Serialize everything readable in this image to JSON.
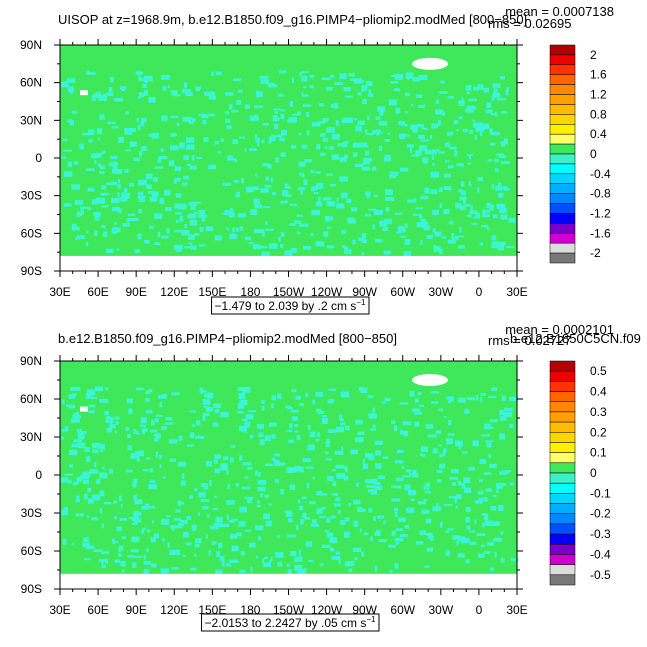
{
  "panels": [
    {
      "title": "UISOP at z=1968.9m, b.e12.B1850.f09_g16.PIMP4−pliomip2.modMed [800−850]",
      "mean": "mean = 0.0007138",
      "rms": "rms = 0.02695",
      "range": "−1.479 to 2.039 by .2 cm s",
      "range_exp": "−1",
      "x_labels": [
        "30E",
        "60E",
        "90E",
        "120E",
        "150E",
        "180",
        "150W",
        "120W",
        "90W",
        "60W",
        "30W",
        "0",
        "30E"
      ],
      "y_labels": [
        "90N",
        "60N",
        "30N",
        "0",
        "30S",
        "60S",
        "90S"
      ],
      "colorbar": {
        "labels": [
          2,
          1.6,
          1.2,
          0.8,
          0.4,
          0,
          -0.4,
          -0.8,
          -1.2,
          -1.6,
          -2
        ],
        "colors": [
          "#b40000",
          "#ee0000",
          "#ff3300",
          "#ff6600",
          "#ff8800",
          "#ffa000",
          "#ffbb00",
          "#ffd500",
          "#fff000",
          "#ffff66",
          "#3ee85a",
          "#3cf0c8",
          "#00ffff",
          "#00d8ff",
          "#00b0ff",
          "#0088ff",
          "#0050ff",
          "#0000ff",
          "#7800c8",
          "#d000d0",
          "#dcdcdc",
          "#787878"
        ]
      }
    },
    {
      "title": "b.e12.B1850.f09_g16.PIMP4−pliomip2.modMed [800−850]",
      "mean": "mean = 0.0002101",
      "rms": "rms = 0.02727",
      "overlay": "b.e12.B1850C5CN.f09",
      "range": "−2.0153 to 2.2427 by .05 cm s",
      "range_exp": "−1",
      "x_labels": [
        "30E",
        "60E",
        "90E",
        "120E",
        "150E",
        "180",
        "150W",
        "120W",
        "90W",
        "60W",
        "30W",
        "0",
        "30E"
      ],
      "y_labels": [
        "90N",
        "60N",
        "30N",
        "0",
        "30S",
        "60S",
        "90S"
      ],
      "colorbar": {
        "labels": [
          0.5,
          0.4,
          0.3,
          0.2,
          0.1,
          0,
          -0.1,
          -0.2,
          -0.3,
          -0.4,
          -0.5
        ],
        "colors": [
          "#b40000",
          "#ee0000",
          "#ff3300",
          "#ff6600",
          "#ff8800",
          "#ffa000",
          "#ffbb00",
          "#ffd500",
          "#fff000",
          "#ffff66",
          "#3ee85a",
          "#3cf0c8",
          "#00ffff",
          "#00d8ff",
          "#00b0ff",
          "#0088ff",
          "#0050ff",
          "#0000ff",
          "#7800c8",
          "#d000d0",
          "#dcdcdc",
          "#787878"
        ]
      }
    }
  ]
}
